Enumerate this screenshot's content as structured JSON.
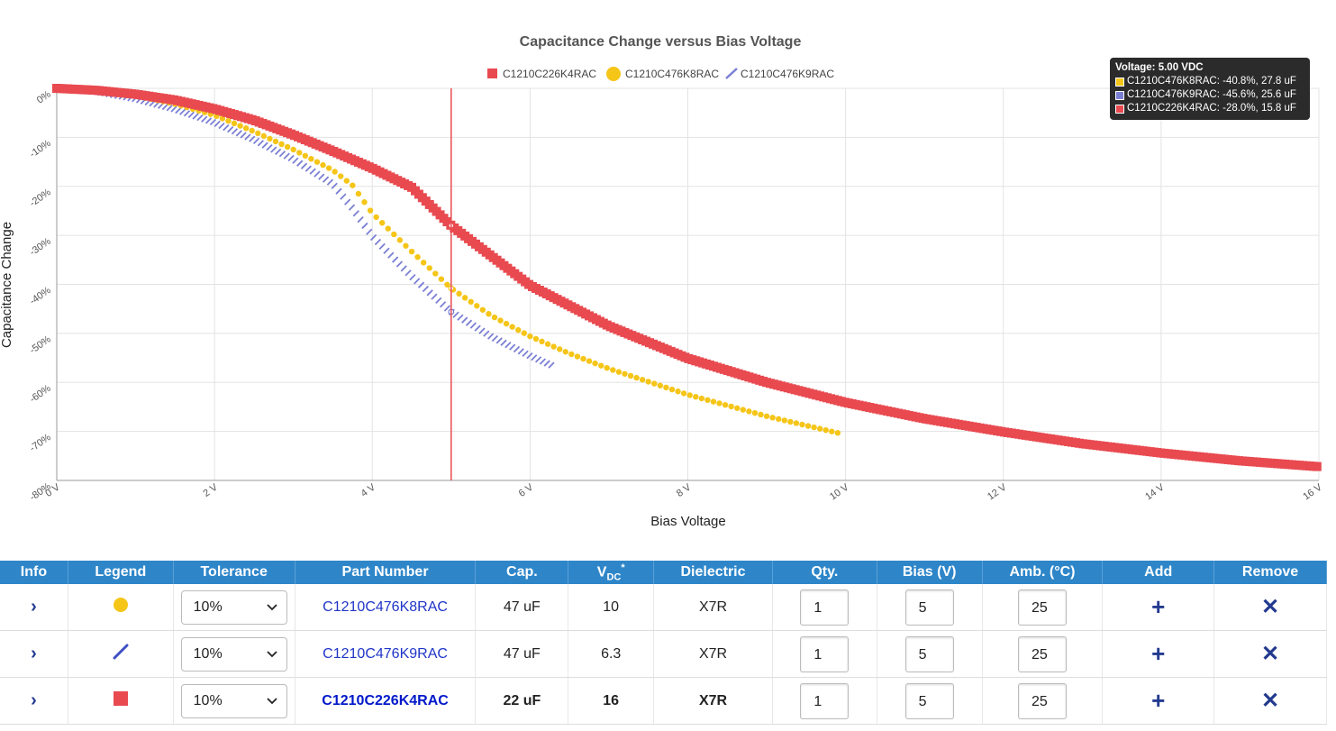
{
  "chart_data": {
    "type": "line",
    "title": "Capacitance Change versus Bias Voltage",
    "xlabel": "Bias Voltage",
    "ylabel": "Capacitance Change",
    "xlim": [
      0,
      16
    ],
    "ylim": [
      -80,
      0
    ],
    "x_ticks": [
      "0 V",
      "2 V",
      "4 V",
      "6 V",
      "8 V",
      "10 V",
      "12 V",
      "14 V",
      "16 V"
    ],
    "y_ticks": [
      "0%",
      "-10%",
      "-20%",
      "-30%",
      "-40%",
      "-50%",
      "-60%",
      "-70%",
      "-80%"
    ],
    "grid": true,
    "legend_position": "top-center",
    "cursor_x": 5,
    "series": [
      {
        "name": "C1210C226K4RAC",
        "marker": "square",
        "color": "#e84a50",
        "x": [
          0,
          0.5,
          1,
          1.5,
          2,
          2.5,
          3,
          3.5,
          4,
          4.5,
          5,
          6,
          7,
          8,
          9,
          10,
          11,
          12,
          13,
          14,
          15,
          16
        ],
        "y": [
          0,
          -0.4,
          -1.2,
          -2.4,
          -4.2,
          -6.5,
          -9.5,
          -12.8,
          -16.3,
          -20.2,
          -28,
          -40.2,
          -48.5,
          -55.1,
          -60,
          -64.1,
          -67.4,
          -70.1,
          -72.5,
          -74.4,
          -76,
          -77.2
        ]
      },
      {
        "name": "C1210C476K8RAC",
        "marker": "circle",
        "color": "#f5c518",
        "x": [
          0,
          0.5,
          1,
          1.5,
          2,
          2.5,
          3,
          3.5,
          3.75,
          4,
          4.5,
          5,
          5.5,
          6,
          6.5,
          7,
          8,
          9,
          9.9
        ],
        "y": [
          0,
          -0.5,
          -1.5,
          -3.2,
          -5.5,
          -8.8,
          -12.5,
          -16.7,
          -19.8,
          -25.5,
          -33.3,
          -40.8,
          -46.3,
          -50.6,
          -54.1,
          -57.2,
          -62.5,
          -66.9,
          -70.3
        ]
      },
      {
        "name": "C1210C476K9RAC",
        "marker": "line",
        "color": "#7a7fd4",
        "x": [
          0,
          0.5,
          1,
          1.5,
          2,
          2.5,
          3,
          3.5,
          3.75,
          4,
          4.5,
          5,
          5.5,
          6,
          6.3
        ],
        "y": [
          0,
          -0.7,
          -2.2,
          -4.3,
          -7.0,
          -10.5,
          -14.5,
          -19.5,
          -24.5,
          -30.2,
          -38.4,
          -45.6,
          -50.6,
          -54.6,
          -56.7
        ]
      }
    ]
  },
  "tooltip": {
    "title": "Voltage: 5.00 VDC",
    "rows": [
      {
        "text": "C1210C476K8RAC: -40.8%, 27.8 uF",
        "color": "#f5c518"
      },
      {
        "text": "C1210C476K9RAC: -45.6%, 25.6 uF",
        "color": "#7a7fd4"
      },
      {
        "text": "C1210C226K4RAC: -28.0%, 15.8 uF",
        "color": "#e84a50"
      }
    ]
  },
  "table": {
    "headers": {
      "info": "Info",
      "legend": "Legend",
      "tolerance": "Tolerance",
      "part_number": "Part Number",
      "cap": "Cap.",
      "vdc_main": "V",
      "vdc_sub": "DC",
      "vdc_sup": "*",
      "dielectric": "Dielectric",
      "qty": "Qty.",
      "bias": "Bias (V)",
      "amb": "Amb. (°C)",
      "add": "Add",
      "remove": "Remove"
    },
    "rows": [
      {
        "info": "›",
        "legend": "circle",
        "legend_color": "#f5c518",
        "tolerance": "10%",
        "part": "C1210C476K8RAC",
        "cap": "47 uF",
        "vdc": "10",
        "dielectric": "X7R",
        "qty": "1",
        "bias": "5",
        "amb": "25",
        "add": "+",
        "remove": "✕",
        "bold": false
      },
      {
        "info": "›",
        "legend": "line",
        "legend_color": "#3f4fc4",
        "tolerance": "10%",
        "part": "C1210C476K9RAC",
        "cap": "47 uF",
        "vdc": "6.3",
        "dielectric": "X7R",
        "qty": "1",
        "bias": "5",
        "amb": "25",
        "add": "+",
        "remove": "✕",
        "bold": false
      },
      {
        "info": "›",
        "legend": "square",
        "legend_color": "#e84a50",
        "tolerance": "10%",
        "part": "C1210C226K4RAC",
        "cap": "22 uF",
        "vdc": "16",
        "dielectric": "X7R",
        "qty": "1",
        "bias": "5",
        "amb": "25",
        "add": "+",
        "remove": "✕",
        "bold": true
      }
    ]
  }
}
